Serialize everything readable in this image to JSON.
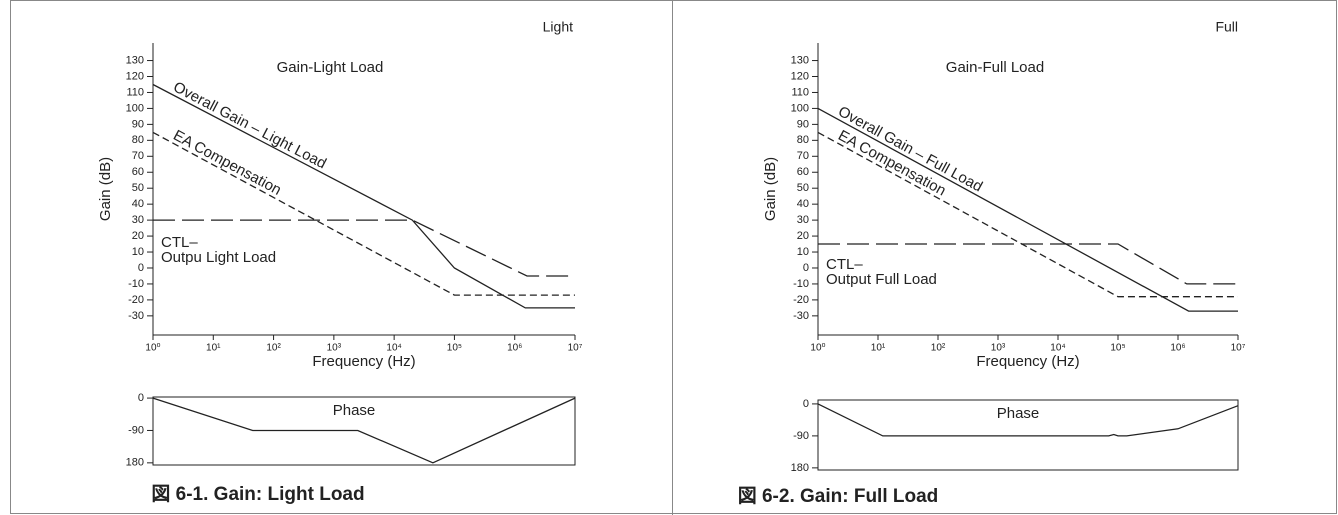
{
  "panels": [
    {
      "header": "Light",
      "caption": "図 6-1. Gain: Light Load"
    },
    {
      "header": "Full",
      "caption": "図 6-2. Gain: Full Load"
    }
  ],
  "chart_data": [
    {
      "type": "line",
      "title": "Gain-Light Load",
      "x_label": "Frequency (Hz)",
      "y_label": "Gain (dB)",
      "log_x": true,
      "xlim": [
        1,
        10000000
      ],
      "xticks": [
        {
          "value": 1,
          "label": "10⁰"
        },
        {
          "value": 10,
          "label": "10¹"
        },
        {
          "value": 100,
          "label": "10²"
        },
        {
          "value": 1000,
          "label": "10³"
        },
        {
          "value": 10000,
          "label": "10⁴"
        },
        {
          "value": 100000,
          "label": "10⁵"
        },
        {
          "value": 1000000,
          "label": "10⁶"
        },
        {
          "value": 10000000,
          "label": "10⁷"
        }
      ],
      "ylim": [
        -42,
        141
      ],
      "yticks": [
        130,
        120,
        110,
        100,
        90,
        80,
        70,
        60,
        50,
        40,
        30,
        20,
        10,
        0,
        -10,
        -20,
        -30
      ],
      "series": [
        {
          "name": "Overall Gain – Light Load",
          "color": "#222",
          "style": "solid",
          "x": [
            1,
            20000,
            100000,
            1500000,
            10000000
          ],
          "values": [
            115,
            30,
            0,
            -25,
            -25
          ]
        },
        {
          "name": "EA Compensation",
          "color": "#222",
          "style": "dashed",
          "x": [
            1,
            100000,
            10000000
          ],
          "values": [
            85,
            -17,
            -17
          ]
        },
        {
          "color": "#222",
          "style": "long-dash",
          "x": [
            1,
            20000,
            1600000,
            10000000
          ],
          "values": [
            30,
            30,
            -5,
            -5
          ]
        }
      ],
      "annotations": [
        "CTL–",
        "Outpu Light Load"
      ]
    },
    {
      "type": "line",
      "title": "Phase",
      "log_x": true,
      "xlim": [
        1,
        10000000
      ],
      "ylim": [
        -186,
        3
      ],
      "yticks": [
        0,
        -90,
        {
          "value": -180,
          "label": "180"
        }
      ],
      "series": [
        {
          "color": "#222",
          "style": "solid",
          "x": [
            1,
            45,
            2500,
            44000,
            10000000
          ],
          "values": [
            0,
            -90,
            -90,
            -180,
            0
          ]
        }
      ]
    },
    {
      "type": "line",
      "title": "Gain-Full Load",
      "x_label": "Frequency (Hz)",
      "y_label": "Gain (dB)",
      "log_x": true,
      "xlim": [
        1,
        10000000
      ],
      "xticks": [
        {
          "value": 1,
          "label": "10⁰"
        },
        {
          "value": 10,
          "label": "10¹"
        },
        {
          "value": 100,
          "label": "10²"
        },
        {
          "value": 1000,
          "label": "10³"
        },
        {
          "value": 10000,
          "label": "10⁴"
        },
        {
          "value": 100000,
          "label": "10⁵"
        },
        {
          "value": 1000000,
          "label": "10⁶"
        },
        {
          "value": 10000000,
          "label": "10⁷"
        }
      ],
      "ylim": [
        -42,
        141
      ],
      "yticks": [
        130,
        120,
        110,
        100,
        90,
        80,
        70,
        60,
        50,
        40,
        30,
        20,
        10,
        0,
        -10,
        -20,
        -30
      ],
      "series": [
        {
          "name": "Overall Gain – Full Load",
          "color": "#222",
          "style": "solid",
          "x": [
            1,
            1500000,
            10000000
          ],
          "values": [
            100,
            -27,
            -27
          ]
        },
        {
          "name": "EA Compensation",
          "color": "#222",
          "style": "dashed",
          "x": [
            1,
            100000,
            10000000
          ],
          "values": [
            85,
            -18,
            -18
          ]
        },
        {
          "color": "#222",
          "style": "long-dash",
          "x": [
            1,
            100000,
            1400000,
            10000000
          ],
          "values": [
            15,
            15,
            -10,
            -10
          ]
        }
      ],
      "annotations": [
        "CTL–",
        "Output Full Load"
      ]
    },
    {
      "type": "line",
      "title": "Phase",
      "log_x": true,
      "xlim": [
        1,
        10000000
      ],
      "ylim": [
        -186,
        11
      ],
      "yticks": [
        0,
        -90,
        {
          "value": -180,
          "label": "180"
        }
      ],
      "series": [
        {
          "color": "#222",
          "style": "solid",
          "x": [
            1,
            12,
            70000,
            85000,
            100000,
            140000,
            1000000,
            10000000
          ],
          "values": [
            0,
            -90,
            -90,
            -86,
            -90,
            -90,
            -70,
            -5
          ]
        }
      ]
    }
  ]
}
